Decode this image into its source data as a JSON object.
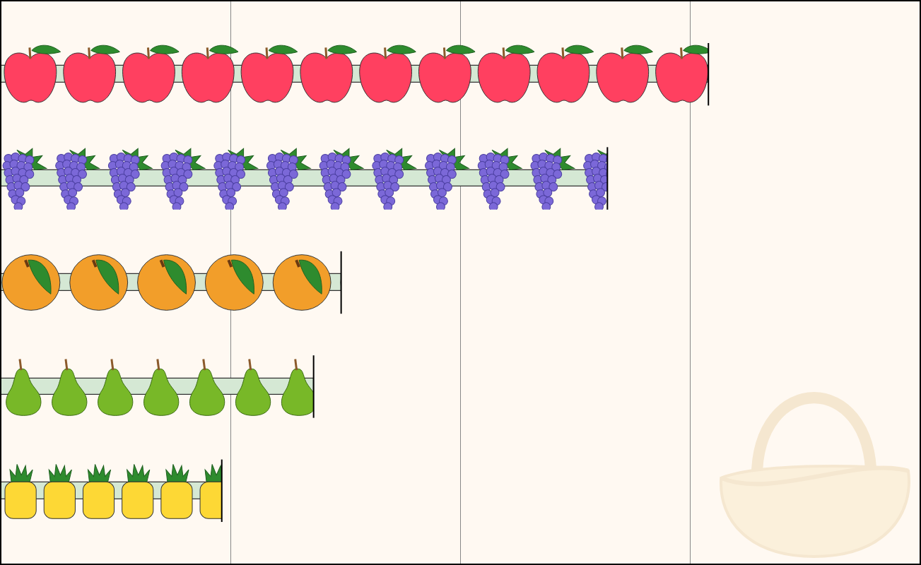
{
  "chart_data": {
    "type": "bar",
    "orientation": "horizontal",
    "categories": [
      null,
      null,
      null,
      null,
      null
    ],
    "values": [
      308,
      264,
      148,
      136,
      96
    ],
    "color": "#d5e8d4",
    "xlim": [
      0,
      400
    ],
    "xticks": [
      0,
      100,
      200,
      300,
      400
    ],
    "grid": true,
    "tick_labels": false
  }
}
